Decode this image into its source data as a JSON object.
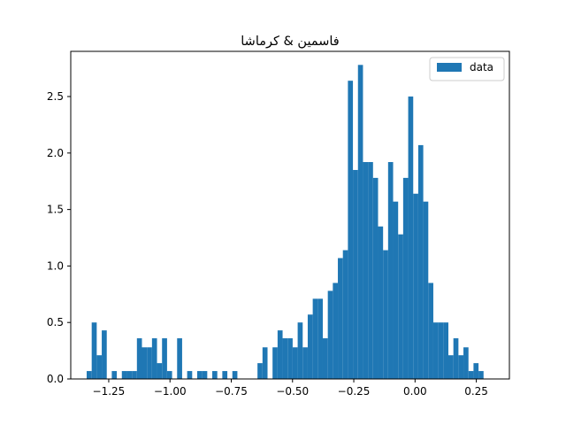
{
  "chart_data": {
    "type": "bar",
    "title": "فاسمین & کرماشا",
    "xlabel": "",
    "ylabel": "",
    "xlim": [
      -1.405,
      0.385
    ],
    "ylim": [
      0,
      2.9
    ],
    "xticks": [
      -1.25,
      -1.0,
      -0.75,
      -0.5,
      -0.25,
      0.0,
      0.25
    ],
    "xtick_labels": [
      "−1.25",
      "−1.00",
      "−0.75",
      "−0.50",
      "−0.25",
      "0.00",
      "0.25"
    ],
    "yticks": [
      0.0,
      0.5,
      1.0,
      1.5,
      2.0,
      2.5
    ],
    "ytick_labels": [
      "0.0",
      "0.5",
      "1.0",
      "1.5",
      "2.0",
      "2.5"
    ],
    "grid": false,
    "legend": {
      "position": "top-right",
      "entries": [
        "data"
      ]
    },
    "bin_start": -1.34,
    "bin_width": 0.0205,
    "series": [
      {
        "name": "data",
        "color": "#1f77b4",
        "values": [
          0.07,
          0.5,
          0.21,
          0.43,
          0,
          0.07,
          0,
          0.07,
          0.07,
          0.07,
          0.36,
          0.28,
          0.28,
          0.36,
          0.14,
          0.36,
          0.07,
          0,
          0.36,
          0,
          0.07,
          0,
          0.07,
          0.07,
          0,
          0.07,
          0,
          0.07,
          0,
          0.07,
          0,
          0,
          0,
          0,
          0.14,
          0.28,
          0,
          0.28,
          0.43,
          0.36,
          0.36,
          0.28,
          0.5,
          0.28,
          0.57,
          0.71,
          0.71,
          0.36,
          0.78,
          0.85,
          1.07,
          1.14,
          2.64,
          1.85,
          2.78,
          1.92,
          1.92,
          1.78,
          1.35,
          1.14,
          1.92,
          1.57,
          1.28,
          1.78,
          2.5,
          1.64,
          2.07,
          1.57,
          0.85,
          0.5,
          0.5,
          0.5,
          0.21,
          0.36,
          0.21,
          0.28,
          0.07,
          0.14,
          0.07
        ]
      }
    ]
  }
}
